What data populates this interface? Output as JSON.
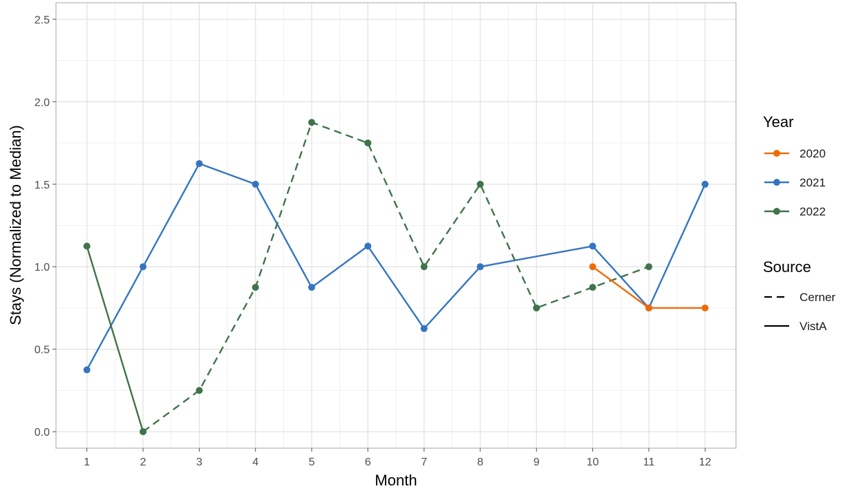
{
  "chart_data": {
    "type": "line",
    "xlabel": "Month",
    "ylabel": "Stays (Normalized to Median)",
    "xlim": [
      0.45,
      12.55
    ],
    "ylim": [
      -0.1,
      2.6
    ],
    "x_ticks": [
      1,
      2,
      3,
      4,
      5,
      6,
      7,
      8,
      9,
      10,
      11,
      12
    ],
    "y_ticks": [
      0.0,
      0.5,
      1.0,
      1.5,
      2.0,
      2.5
    ],
    "y_tick_labels": [
      "0.0",
      "0.5",
      "1.0",
      "1.5",
      "2.0",
      "2.5"
    ],
    "grid": true,
    "legend_position": "right",
    "legend": {
      "year": {
        "title": "Year",
        "items": [
          {
            "label": "2020",
            "color": "#f06a0a"
          },
          {
            "label": "2021",
            "color": "#3575c0"
          },
          {
            "label": "2022",
            "color": "#40734a"
          }
        ]
      },
      "source": {
        "title": "Source",
        "items": [
          {
            "label": "Cerner",
            "linetype": "dashed"
          },
          {
            "label": "VistA",
            "linetype": "solid"
          }
        ]
      }
    },
    "series": [
      {
        "year": "2021",
        "source": "VistA",
        "color": "#3575c0",
        "linetype": "solid",
        "x": [
          1,
          2,
          3,
          4,
          5,
          6,
          7,
          8,
          10,
          11,
          12
        ],
        "y": [
          0.375,
          1.0,
          1.625,
          1.5,
          0.875,
          1.125,
          0.625,
          1.0,
          1.125,
          0.75,
          1.5
        ]
      },
      {
        "year": "2022",
        "source": "VistA",
        "color": "#40734a",
        "linetype": "solid",
        "x": [
          1,
          2
        ],
        "y": [
          1.125,
          0.0
        ]
      },
      {
        "year": "2022",
        "source": "Cerner",
        "color": "#40734a",
        "linetype": "dashed",
        "x": [
          2,
          3,
          4,
          5,
          6,
          7,
          8,
          9,
          10,
          11
        ],
        "y": [
          0.0,
          0.25,
          0.875,
          1.875,
          1.75,
          1.0,
          1.5,
          0.75,
          0.875,
          1.0
        ]
      },
      {
        "year": "2020",
        "source": "VistA",
        "color": "#f06a0a",
        "linetype": "solid",
        "x": [
          10,
          11,
          12
        ],
        "y": [
          1.0,
          0.75,
          0.75
        ]
      }
    ]
  }
}
